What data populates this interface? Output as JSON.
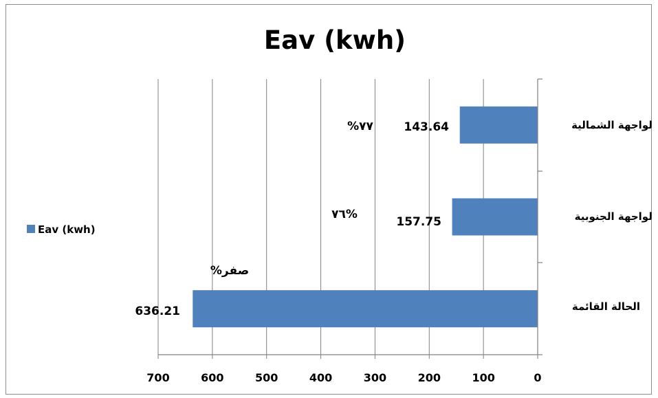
{
  "chart_data": {
    "type": "bar",
    "orientation": "horizontal",
    "title": "Eav (kwh)",
    "categories": [
      "الواجهة الشمالية",
      "الواجهة الجنوبية",
      "الحالة القائمة"
    ],
    "series": [
      {
        "name": "Eav (kwh)",
        "values": [
          143.64,
          157.75,
          636.21
        ],
        "color": "#4f81bd"
      }
    ],
    "data_labels": [
      "143.64",
      "157.75",
      "636.21"
    ],
    "annotations": [
      "%٧٧",
      "٧٦%",
      "%صفر"
    ],
    "xlim": [
      0,
      700
    ],
    "x_reversed": true,
    "x_ticks": [
      0,
      100,
      200,
      300,
      400,
      500,
      600,
      700
    ],
    "tick_labels": [
      "0",
      "100",
      "200",
      "300",
      "400",
      "500",
      "600",
      "700"
    ],
    "grid": true,
    "legend_position": "left"
  },
  "colors": {
    "bar": "#4f81bd",
    "grid": "#808080",
    "axis": "#808080"
  }
}
